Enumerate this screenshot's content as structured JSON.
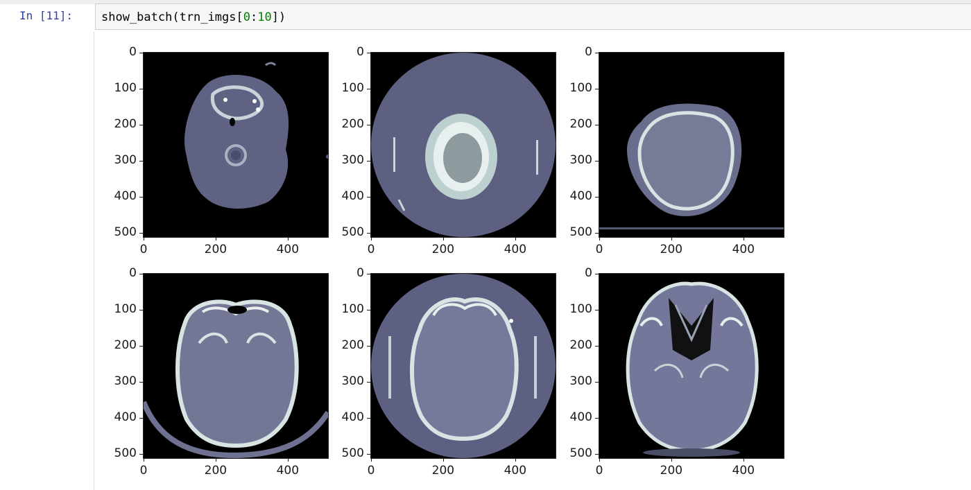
{
  "cell": {
    "prompt": "In [11]:",
    "code_prefix": "show_batch(trn_imgs[",
    "code_num1": "0",
    "code_colon": ":",
    "code_num2": "10",
    "code_suffix": "])"
  },
  "axes": {
    "y_ticks": [
      "0",
      "100",
      "200",
      "300",
      "400",
      "500"
    ],
    "x_ticks": [
      "0",
      "200",
      "400"
    ]
  },
  "images": [
    {
      "name": "ct-slice-1",
      "description_icon": "ct-scan-image"
    },
    {
      "name": "ct-slice-2",
      "description_icon": "ct-scan-image"
    },
    {
      "name": "ct-slice-3",
      "description_icon": "ct-scan-image"
    },
    {
      "name": "ct-slice-4",
      "description_icon": "ct-scan-image"
    },
    {
      "name": "ct-slice-5",
      "description_icon": "ct-scan-image"
    },
    {
      "name": "ct-slice-6",
      "description_icon": "ct-scan-image"
    }
  ],
  "colors": {
    "bone": "#d9e4e6",
    "tissue": "#6b6e8c",
    "brain": "#787b98",
    "background": "#000000",
    "fov": "#5d6081"
  }
}
